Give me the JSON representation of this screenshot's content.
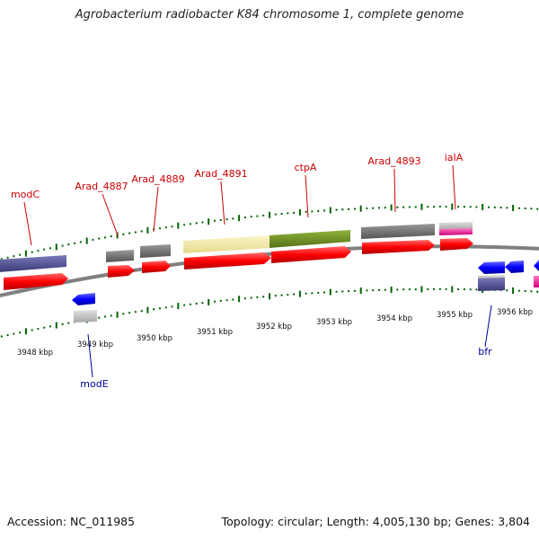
{
  "title": "Agrobacterium radiobacter K84 chromosome 1, complete genome",
  "footer": {
    "accession": "Accession: NC_011985",
    "topology": "Topology: circular; Length: 4,005,130 bp; Genes: 3,804"
  },
  "colors": {
    "backbone": "#808080",
    "forward_cds": "#ff0000",
    "reverse_cds": "#0000ff",
    "tick": "#006400",
    "label_forward": "#cc0000",
    "label_reverse": "#000099"
  },
  "ruler": {
    "unit": "kbp",
    "labels": [
      "3948 kbp",
      "3949 kbp",
      "3950 kbp",
      "3951 kbp",
      "3952 kbp",
      "3953 kbp",
      "3954 kbp",
      "3955 kbp",
      "3956 kbp"
    ]
  },
  "genes": [
    {
      "name": "modC",
      "strand": "forward",
      "cog_color": "#4b4b8c"
    },
    {
      "name": "Arad_4887",
      "strand": "forward",
      "cog_color": "#707070"
    },
    {
      "name": "Arad_4889",
      "strand": "forward",
      "cog_color": "#707070"
    },
    {
      "name": "Arad_4891",
      "strand": "forward",
      "cog_color": "#f0e6a0"
    },
    {
      "name": "ctpA",
      "strand": "forward",
      "cog_color": "#6b8e23"
    },
    {
      "name": "Arad_4893",
      "strand": "forward",
      "cog_color": "#707070"
    },
    {
      "name": "iaIA",
      "strand": "forward",
      "cog_color": "#ff1493"
    },
    {
      "name": "modE",
      "strand": "reverse",
      "cog_color": "#c0c0c0"
    },
    {
      "name": "bfr",
      "strand": "reverse",
      "cog_color": "#4b4b8c"
    }
  ]
}
